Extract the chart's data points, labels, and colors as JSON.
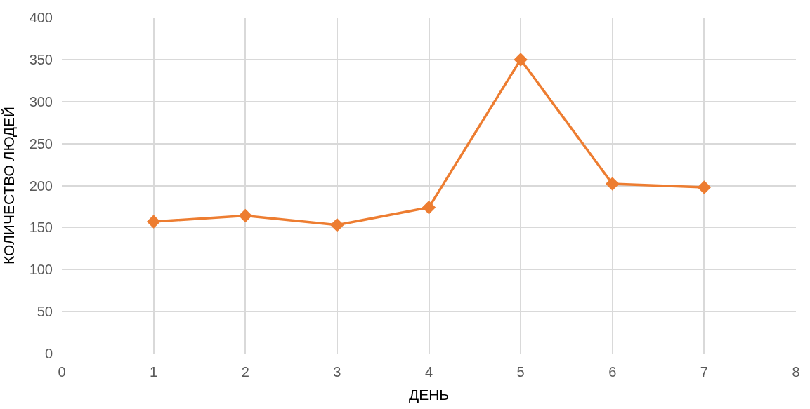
{
  "chart_data": {
    "type": "line",
    "xlabel": "ДЕНЬ",
    "ylabel": "КОЛИЧЕСТВО ЛЮДЕЙ",
    "x": [
      1,
      2,
      3,
      4,
      5,
      6,
      7
    ],
    "series": [
      {
        "color": "#ed7d31",
        "values": [
          157,
          164,
          153,
          174,
          350,
          202,
          198
        ]
      }
    ],
    "xlim": [
      0,
      8
    ],
    "xticks": [
      0,
      1,
      2,
      3,
      4,
      5,
      6,
      7,
      8
    ],
    "ylim": [
      0,
      400
    ],
    "yticks": [
      0,
      50,
      100,
      150,
      200,
      250,
      300,
      350,
      400
    ],
    "grid": true,
    "marker": "diamond",
    "line_style": "solid",
    "legend": false
  }
}
